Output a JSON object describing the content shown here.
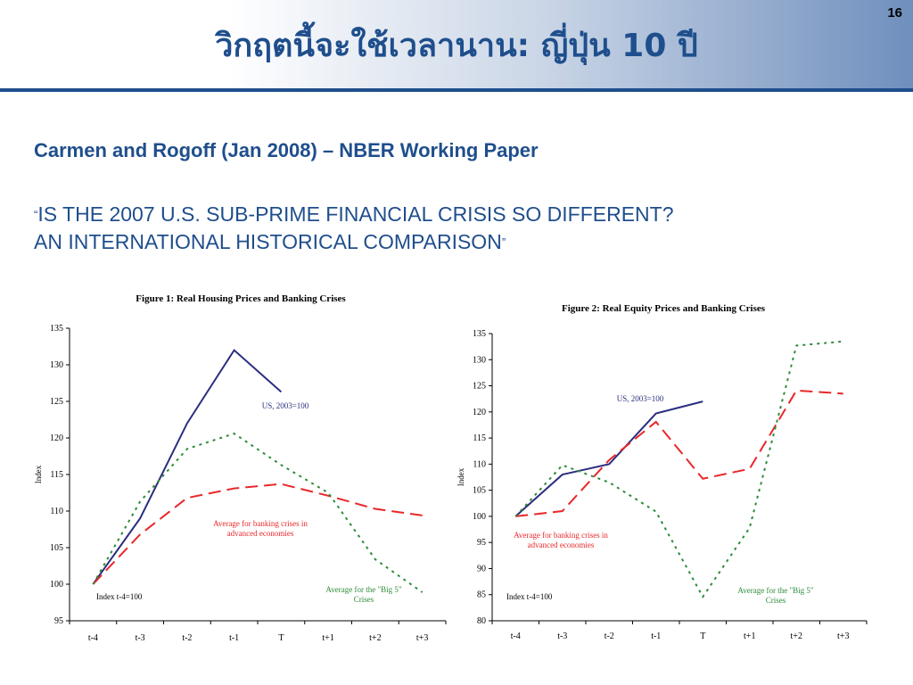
{
  "slide": {
    "title": "วิกฤตนี้จะใช้เวลานาน: ญี่ปุ่น 10 ปี",
    "page_number": "16",
    "paper_reference": "Carmen and Rogoff (Jan 2008) – NBER Working Paper",
    "paper_title_open_quote": "“",
    "paper_title_line1": "IS THE 2007 U.S. SUB-PRIME FINANCIAL CRISIS SO DIFFERENT?",
    "paper_title_line2": "AN INTERNATIONAL HISTORICAL COMPARISON",
    "paper_title_close_quote": "”"
  },
  "colors": {
    "accent": "#1f4e8c",
    "us_series": "#2b2e7e",
    "advanced_series": "#e8272a",
    "big5_series": "#2e8b3a"
  },
  "chart_data": [
    {
      "type": "line",
      "title": "Figure 1:  Real Housing Prices and Banking Crises",
      "ylabel": "Index",
      "categories": [
        "t-4",
        "t-3",
        "t-2",
        "t-1",
        "T",
        "t+1",
        "t+2",
        "t+3"
      ],
      "ylim": [
        95,
        135
      ],
      "yticks": [
        95,
        100,
        105,
        110,
        115,
        120,
        125,
        130,
        135
      ],
      "grid": false,
      "annotation": "Index t-4=100",
      "series": [
        {
          "name": "US, 2003=100",
          "style": "solid",
          "color": "#2b2e7e",
          "values": [
            100,
            109,
            122,
            132,
            126.3,
            null,
            null,
            null
          ]
        },
        {
          "name": "Average for banking crises in advanced economies",
          "style": "dashed",
          "color": "#e8272a",
          "values": [
            100,
            106.8,
            111.8,
            113.1,
            113.7,
            112.1,
            110.3,
            109.4
          ]
        },
        {
          "name": "Average for the \"Big 5\" Crises",
          "style": "dotted",
          "color": "#2e8b3a",
          "values": [
            100,
            111.3,
            118.5,
            120.6,
            116.3,
            112.5,
            103.4,
            98.9
          ]
        }
      ]
    },
    {
      "type": "line",
      "title": "Figure 2:  Real Equity Prices and Banking Crises",
      "ylabel": "Index",
      "categories": [
        "t-4",
        "t-3",
        "t-2",
        "t-1",
        "T",
        "t+1",
        "t+2",
        "t+3"
      ],
      "ylim": [
        80,
        135
      ],
      "yticks": [
        80,
        85,
        90,
        95,
        100,
        105,
        110,
        115,
        120,
        125,
        130,
        135
      ],
      "grid": false,
      "annotation": "Index t-4=100",
      "series": [
        {
          "name": "US, 2003=100",
          "style": "solid",
          "color": "#2b2e7e",
          "values": [
            100,
            108,
            110,
            119.7,
            122,
            null,
            null,
            null
          ]
        },
        {
          "name": "Average for banking crises in advanced economies",
          "style": "dashed",
          "color": "#e8272a",
          "values": [
            100,
            101,
            110.8,
            118.1,
            107.2,
            109.1,
            124.1,
            123.5
          ]
        },
        {
          "name": "Average for the \"Big 5\" Crises",
          "style": "dotted",
          "color": "#2e8b3a",
          "values": [
            100,
            109.8,
            106.5,
            100.9,
            84.6,
            97.8,
            132.7,
            133.5
          ]
        }
      ]
    }
  ]
}
